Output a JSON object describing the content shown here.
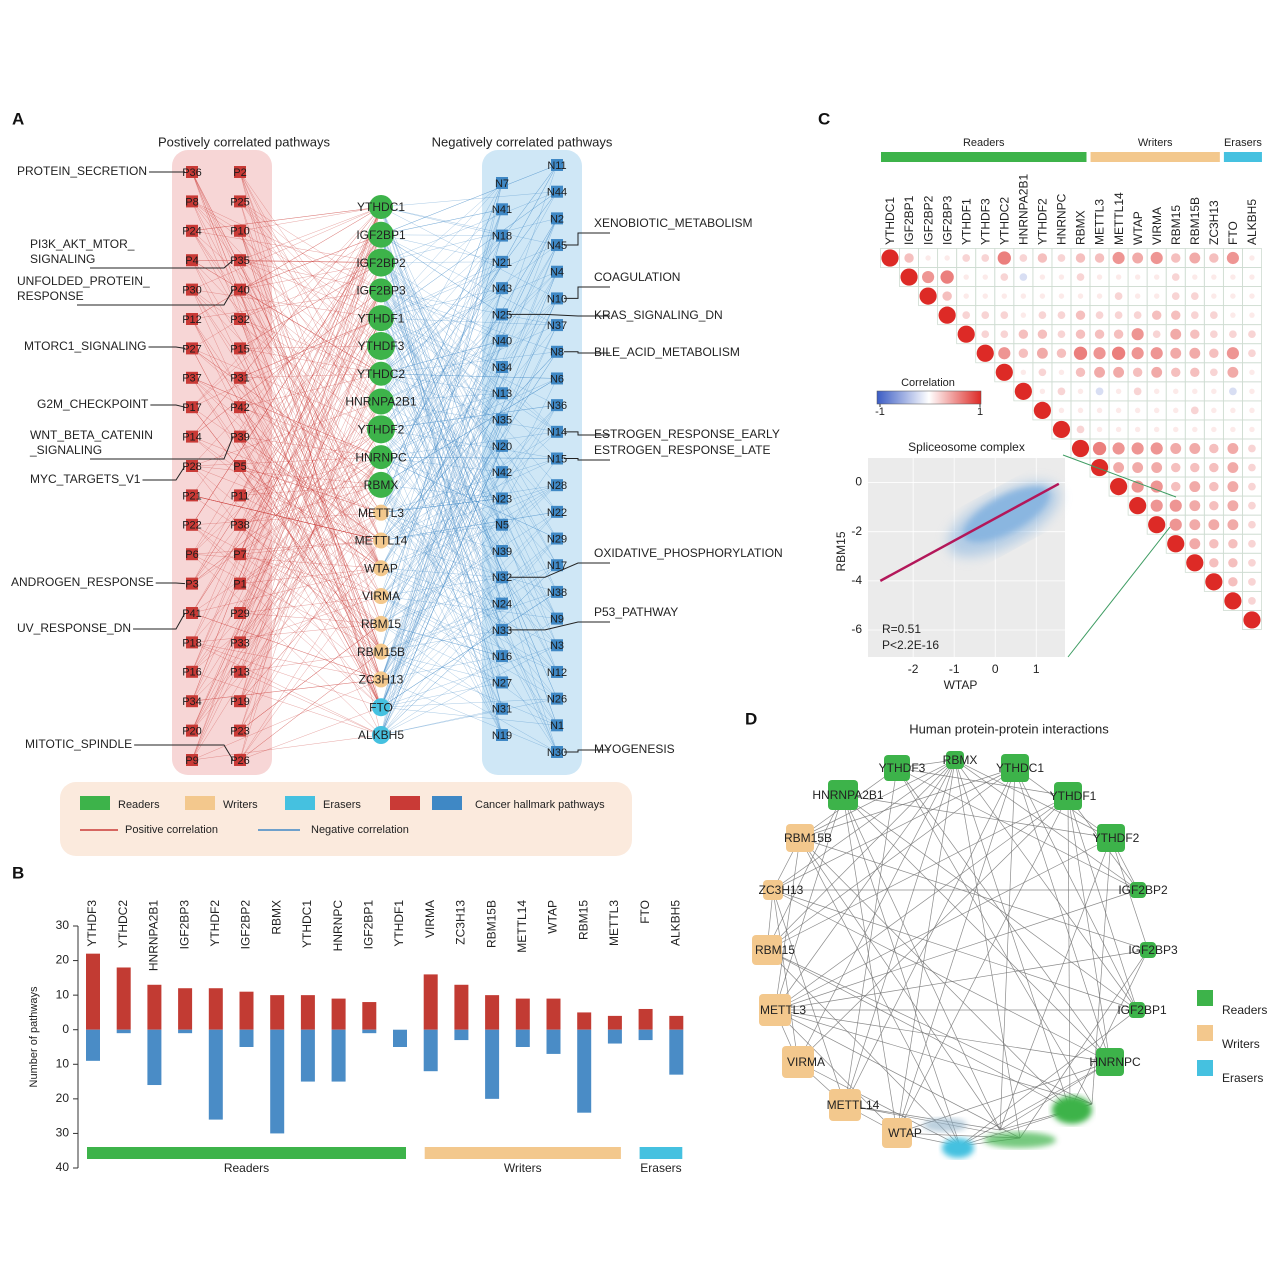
{
  "network_a": {
    "panel": "A",
    "positive_title": "Postively correlated pathways",
    "negative_title": "Negatively correlated pathways",
    "positive_color": "#c93a36",
    "negative_color": "#3f88c5",
    "positive_pathways": [
      [
        "P36",
        "P8",
        "P24",
        "P4",
        "P30",
        "P12",
        "P27",
        "P37",
        "P17",
        "P14",
        "P28",
        "P21",
        "P22",
        "P6",
        "P3",
        "P41",
        "P18",
        "P16",
        "P34",
        "P20",
        "P9"
      ],
      [
        "P2",
        "P25",
        "P10",
        "P35",
        "P40",
        "P32",
        "P15",
        "P31",
        "P42",
        "P39",
        "P5",
        "P11",
        "P38",
        "P7",
        "P1",
        "P29",
        "P33",
        "P13",
        "P19",
        "P23",
        "P26"
      ]
    ],
    "negative_pathways": [
      [
        "N7",
        "N41",
        "N18",
        "N21",
        "N43",
        "N25",
        "N40",
        "N34",
        "N13",
        "N35",
        "N20",
        "N42",
        "N23",
        "N5",
        "N39",
        "N32",
        "N24",
        "N33",
        "N16",
        "N27",
        "N31",
        "N19"
      ],
      [
        "N11",
        "N44",
        "N2",
        "N45",
        "N4",
        "N10",
        "N37",
        "N8",
        "N6",
        "N36",
        "N14",
        "N15",
        "N28",
        "N22",
        "N29",
        "N17",
        "N38",
        "N9",
        "N3",
        "N12",
        "N26",
        "N1",
        "N30"
      ]
    ],
    "gene_groups": [
      {
        "name": "Readers",
        "color": "#3db34a",
        "genes": [
          "YTHDC1",
          "IGF2BP1",
          "IGF2BP2",
          "IGF2BP3",
          "YTHDF1",
          "YTHDF3",
          "YTHDC2",
          "HNRNPA2B1",
          "YTHDF2",
          "HNRNPC",
          "RBMX"
        ]
      },
      {
        "name": "Writers",
        "color": "#f3c88d",
        "genes": [
          "METTL3",
          "METTL14",
          "WTAP",
          "VIRMA",
          "RBM15",
          "RBM15B",
          "ZC3H13"
        ]
      },
      {
        "name": "Erasers",
        "color": "#45c1e0",
        "genes": [
          "FTO",
          "ALKBH5"
        ]
      }
    ],
    "pathway_legend": "Cancer hallmark pathways",
    "edge_legend": [
      "Positive correlation",
      "Negative correlation"
    ],
    "left_labels": [
      {
        "text": [
          "PROTEIN_SECRETION"
        ],
        "node": "P36"
      },
      {
        "text": [
          "PI3K_AKT_MTOR_",
          "SIGNALING"
        ],
        "node": "P35"
      },
      {
        "text": [
          "UNFOLDED_PROTEIN_",
          "RESPONSE"
        ],
        "node": "P40"
      },
      {
        "text": [
          "MTORC1_SIGNALING"
        ],
        "node": "P27"
      },
      {
        "text": [
          "G2M_CHECKPOINT"
        ],
        "node": "P17"
      },
      {
        "text": [
          "WNT_BETA_CATENIN",
          "_SIGNALING"
        ],
        "node": "P39"
      },
      {
        "text": [
          "MYC_TARGETS_V1"
        ],
        "node": "P28"
      },
      {
        "text": [
          "ANDROGEN_RESPONSE"
        ],
        "node": "P3"
      },
      {
        "text": [
          "UV_RESPONSE_DN"
        ],
        "node": "P41"
      },
      {
        "text": [
          "MITOTIC_SPINDLE"
        ],
        "node": "P26"
      }
    ],
    "right_labels": [
      {
        "text": "XENOBIOTIC_METABOLISM",
        "node": "N45"
      },
      {
        "text": "COAGULATION",
        "node": "N10"
      },
      {
        "text": "KRAS_SIGNALING_DN",
        "node": "N25"
      },
      {
        "text": "BILE_ACID_METABOLISM",
        "node": "N8"
      },
      {
        "text": "ESTROGEN_RESPONSE_EARLY",
        "node": "N14"
      },
      {
        "text": "ESTROGEN_RESPONSE_LATE",
        "node": "N15"
      },
      {
        "text": "OXIDATIVE_PHOSPHORYLATION",
        "node": "N32"
      },
      {
        "text": "P53_PATHWAY",
        "node": "N33"
      },
      {
        "text": "MYOGENESIS",
        "node": "N30"
      }
    ]
  },
  "chart_data": [
    {
      "type": "bar",
      "panel": "B",
      "ylabel": "Number of pathways",
      "categories": [
        "YTHDF3",
        "YTHDC2",
        "HNRNPA2B1",
        "IGF2BP3",
        "YTHDF2",
        "IGF2BP2",
        "RBMX",
        "YTHDC1",
        "HNRNPC",
        "IGF2BP1",
        "YTHDF1",
        "VIRMA",
        "ZC3H13",
        "RBM15B",
        "METTL14",
        "WTAP",
        "RBM15",
        "METTL3",
        "FTO",
        "ALKBH5"
      ],
      "series": [
        {
          "color": "#c23b33",
          "values": [
            22,
            18,
            13,
            12,
            12,
            11,
            10,
            10,
            9,
            8,
            0,
            16,
            13,
            10,
            9,
            9,
            5,
            4,
            6,
            4
          ]
        },
        {
          "color": "#4a8cc6",
          "values": [
            -9,
            -1,
            -16,
            -1,
            -26,
            -5,
            -30,
            -15,
            -15,
            -1,
            -5,
            -12,
            -3,
            -20,
            -5,
            -7,
            -24,
            -4,
            -3,
            -13
          ]
        }
      ],
      "groups": [
        {
          "name": "Readers",
          "color": "#3db34a",
          "size": 11
        },
        {
          "name": "Writers",
          "color": "#f3c88d",
          "size": 7
        },
        {
          "name": "Erasers",
          "color": "#45c1e0",
          "size": 2
        }
      ],
      "ylim": [
        -40,
        30
      ],
      "yticks": [
        30,
        20,
        10,
        0,
        {
          "value": -10,
          "label": "10"
        },
        {
          "value": -20,
          "label": "20"
        },
        {
          "value": -30,
          "label": "30"
        },
        {
          "value": -40,
          "label": "40"
        }
      ]
    },
    {
      "type": "correlation-matrix",
      "panel": "C",
      "groups": [
        {
          "name": "Readers",
          "color": "#3db34a",
          "size": 11
        },
        {
          "name": "Writers",
          "color": "#f3c88d",
          "size": 7
        },
        {
          "name": "Erasers",
          "color": "#45c1e0",
          "size": 2
        }
      ],
      "variables": [
        "YTHDC1",
        "IGF2BP1",
        "IGF2BP2",
        "IGF2BP3",
        "YTHDF1",
        "YTHDF3",
        "YTHDC2",
        "HNRNPA2B1",
        "YTHDF2",
        "HNRNPC",
        "RBMX",
        "METTL3",
        "METTL14",
        "WTAP",
        "VIRMA",
        "RBM15",
        "RBM15B",
        "ZC3H13",
        "FTO",
        "ALKBH5"
      ],
      "values": [
        [
          1,
          0.3,
          0.1,
          0.1,
          0.2,
          0.2,
          0.6,
          0.2,
          0.3,
          0.2,
          0.3,
          0.3,
          0.5,
          0.4,
          0.5,
          0.3,
          0.4,
          0.3,
          0.5,
          0.1
        ],
        [
          1,
          0.5,
          0.6,
          0.1,
          0.1,
          0.2,
          -0.2,
          0.1,
          0.1,
          0.2,
          0.1,
          0.1,
          0.1,
          0.1,
          0.2,
          0.1,
          0.1,
          0.1,
          0.1
        ],
        [
          1,
          0.3,
          0.1,
          0.1,
          0.1,
          0.1,
          0.1,
          0.1,
          0.1,
          0.1,
          0.2,
          0.1,
          0.1,
          0.2,
          0.2,
          0.1,
          0.1,
          0.1
        ],
        [
          1,
          0.2,
          0.2,
          0.2,
          0.1,
          0.2,
          0.2,
          0.3,
          0.2,
          0.2,
          0.2,
          0.3,
          0.3,
          0.2,
          0.2,
          0.1,
          0.1
        ],
        [
          1,
          0.2,
          0.2,
          0.3,
          0.3,
          0.2,
          0.3,
          0.3,
          0.3,
          0.5,
          0.2,
          0.4,
          0.3,
          0.2,
          0.2,
          0.2
        ],
        [
          1,
          0.5,
          0.3,
          0.4,
          0.3,
          0.6,
          0.5,
          0.6,
          0.5,
          0.5,
          0.4,
          0.4,
          0.3,
          0.5,
          0.2
        ],
        [
          1,
          0.1,
          0.2,
          0.1,
          0.3,
          0.4,
          0.4,
          0.3,
          0.4,
          0.3,
          0.3,
          0.2,
          0.4,
          0.1
        ],
        [
          1,
          0.1,
          0.2,
          0.1,
          -0.2,
          0.1,
          0.2,
          0.1,
          0.1,
          0.1,
          0.1,
          -0.2,
          0.1
        ],
        [
          1,
          0.1,
          0.1,
          0.1,
          0.1,
          0.1,
          0.1,
          0.1,
          0.2,
          0.1,
          0.1,
          0.1
        ],
        [
          1,
          0.2,
          0.1,
          0.1,
          0.1,
          0.1,
          0.1,
          0.1,
          0.1,
          0.1,
          0.1
        ],
        [
          1,
          0.6,
          0.5,
          0.5,
          0.5,
          0.4,
          0.4,
          0.3,
          0.4,
          0.2
        ],
        [
          1,
          0.4,
          0.4,
          0.4,
          0.3,
          0.3,
          0.3,
          0.4,
          0.2
        ],
        [
          1,
          0.5,
          0.5,
          0.3,
          0.4,
          0.3,
          0.4,
          0.2
        ],
        [
          1,
          0.5,
          0.5,
          0.4,
          0.3,
          0.4,
          0.2
        ],
        [
          1,
          0.5,
          0.4,
          0.4,
          0.4,
          0.2
        ],
        [
          1,
          0.4,
          0.3,
          0.3,
          0.2
        ],
        [
          1,
          0.3,
          0.3,
          0.2
        ],
        [
          1,
          0.3,
          0.2
        ],
        [
          1,
          0.2
        ],
        [
          1
        ]
      ],
      "colorbar": {
        "title": "Correlation",
        "ticks": [
          -1,
          1
        ],
        "colors": [
          "#3b5cc4",
          "#ffffff",
          "#dd2a26"
        ]
      }
    },
    {
      "type": "scatter",
      "title": "Spliceosome complex",
      "xlabel": "WTAP",
      "ylabel": "RBM15",
      "xlim": [
        -3.1,
        1.7
      ],
      "ylim": [
        -7.1,
        1.0
      ],
      "xticks": [
        -2,
        -1,
        0,
        1
      ],
      "yticks": [
        0,
        -2,
        -4,
        -6
      ],
      "point_color": "#86b4e0",
      "fit": {
        "x": [
          -2.8,
          1.55
        ],
        "y": [
          -4.0,
          -0.05
        ],
        "color": "#b3175a"
      },
      "annotations": [
        "R=0.51",
        "P<2.2E-16"
      ]
    }
  ],
  "network_d": {
    "panel": "D",
    "title": "Human protein-protein interactions",
    "groups": [
      {
        "name": "Readers",
        "color": "#3db34a",
        "nodes": [
          "RBMX",
          "YTHDC1",
          "YTHDF1",
          "YTHDF2",
          "IGF2BP2",
          "IGF2BP3",
          "IGF2BP1",
          "HNRNPC",
          "YTHDF3",
          "HNRNPA2B1"
        ]
      },
      {
        "name": "Writers",
        "color": "#f3c88d",
        "nodes": [
          "RBM15B",
          "ZC3H13",
          "RBM15",
          "METTL3",
          "VIRMA",
          "METTL14",
          "WTAP"
        ]
      },
      {
        "name": "Erasers",
        "color": "#45c1e0",
        "nodes": []
      }
    ]
  }
}
